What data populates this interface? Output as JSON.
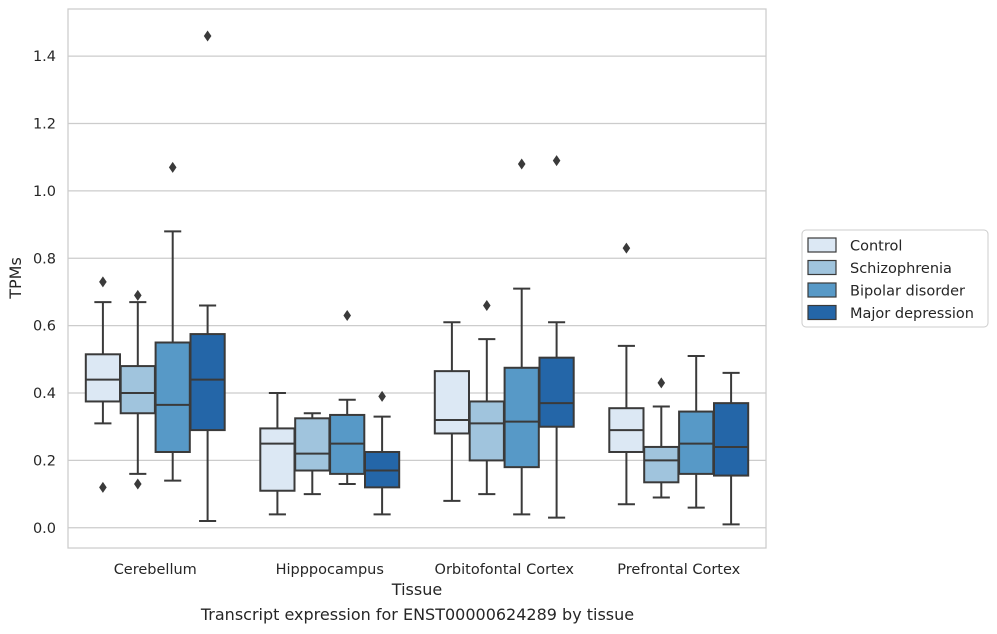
{
  "chart_data": {
    "type": "boxplot",
    "title": "",
    "xlabel": "Tissue",
    "ylabel": "TPMs",
    "ylim": [
      -0.06,
      1.54
    ],
    "yticks": [
      0.0,
      0.2,
      0.4,
      0.6,
      0.8,
      1.0,
      1.2,
      1.4
    ],
    "ytick_labels": [
      "0.0",
      "0.2",
      "0.4",
      "0.6",
      "0.8",
      "1.0",
      "1.2",
      "1.4"
    ],
    "grid": "horizontal",
    "legend_position": "right",
    "categories": [
      "Cerebellum",
      "Hipppocampus",
      "Orbitofontal Cortex",
      "Prefrontal Cortex"
    ],
    "series": [
      {
        "name": "Control",
        "color": "#dce8f4",
        "boxes": [
          {
            "whisker_low": 0.31,
            "q1": 0.375,
            "median": 0.44,
            "q3": 0.515,
            "whisker_high": 0.67,
            "outliers": [
              0.73,
              0.12
            ]
          },
          {
            "whisker_low": 0.04,
            "q1": 0.11,
            "median": 0.25,
            "q3": 0.295,
            "whisker_high": 0.4,
            "outliers": []
          },
          {
            "whisker_low": 0.08,
            "q1": 0.28,
            "median": 0.32,
            "q3": 0.465,
            "whisker_high": 0.61,
            "outliers": []
          },
          {
            "whisker_low": 0.07,
            "q1": 0.225,
            "median": 0.29,
            "q3": 0.355,
            "whisker_high": 0.54,
            "outliers": [
              0.83
            ]
          }
        ]
      },
      {
        "name": "Schizophrenia",
        "color": "#a0c4dd",
        "boxes": [
          {
            "whisker_low": 0.16,
            "q1": 0.34,
            "median": 0.4,
            "q3": 0.48,
            "whisker_high": 0.67,
            "outliers": [
              0.69,
              0.13
            ]
          },
          {
            "whisker_low": 0.1,
            "q1": 0.17,
            "median": 0.22,
            "q3": 0.325,
            "whisker_high": 0.34,
            "outliers": []
          },
          {
            "whisker_low": 0.1,
            "q1": 0.2,
            "median": 0.31,
            "q3": 0.375,
            "whisker_high": 0.56,
            "outliers": [
              0.66
            ]
          },
          {
            "whisker_low": 0.09,
            "q1": 0.135,
            "median": 0.2,
            "q3": 0.24,
            "whisker_high": 0.36,
            "outliers": [
              0.43
            ]
          }
        ]
      },
      {
        "name": "Bipolar disorder",
        "color": "#5799c7",
        "boxes": [
          {
            "whisker_low": 0.14,
            "q1": 0.225,
            "median": 0.365,
            "q3": 0.55,
            "whisker_high": 0.88,
            "outliers": [
              1.07
            ]
          },
          {
            "whisker_low": 0.13,
            "q1": 0.16,
            "median": 0.25,
            "q3": 0.335,
            "whisker_high": 0.38,
            "outliers": [
              0.63
            ]
          },
          {
            "whisker_low": 0.04,
            "q1": 0.18,
            "median": 0.315,
            "q3": 0.475,
            "whisker_high": 0.71,
            "outliers": [
              1.08
            ]
          },
          {
            "whisker_low": 0.06,
            "q1": 0.16,
            "median": 0.25,
            "q3": 0.345,
            "whisker_high": 0.51,
            "outliers": []
          }
        ]
      },
      {
        "name": "Major depression",
        "color": "#2466a8",
        "boxes": [
          {
            "whisker_low": 0.02,
            "q1": 0.29,
            "median": 0.44,
            "q3": 0.575,
            "whisker_high": 0.66,
            "outliers": [
              1.46
            ]
          },
          {
            "whisker_low": 0.04,
            "q1": 0.12,
            "median": 0.17,
            "q3": 0.225,
            "whisker_high": 0.33,
            "outliers": [
              0.39
            ]
          },
          {
            "whisker_low": 0.03,
            "q1": 0.3,
            "median": 0.37,
            "q3": 0.505,
            "whisker_high": 0.61,
            "outliers": [
              1.09
            ]
          },
          {
            "whisker_low": 0.01,
            "q1": 0.155,
            "median": 0.24,
            "q3": 0.37,
            "whisker_high": 0.46,
            "outliers": []
          }
        ]
      }
    ]
  },
  "caption": "Transcript expression for ENST00000624289 by tissue"
}
